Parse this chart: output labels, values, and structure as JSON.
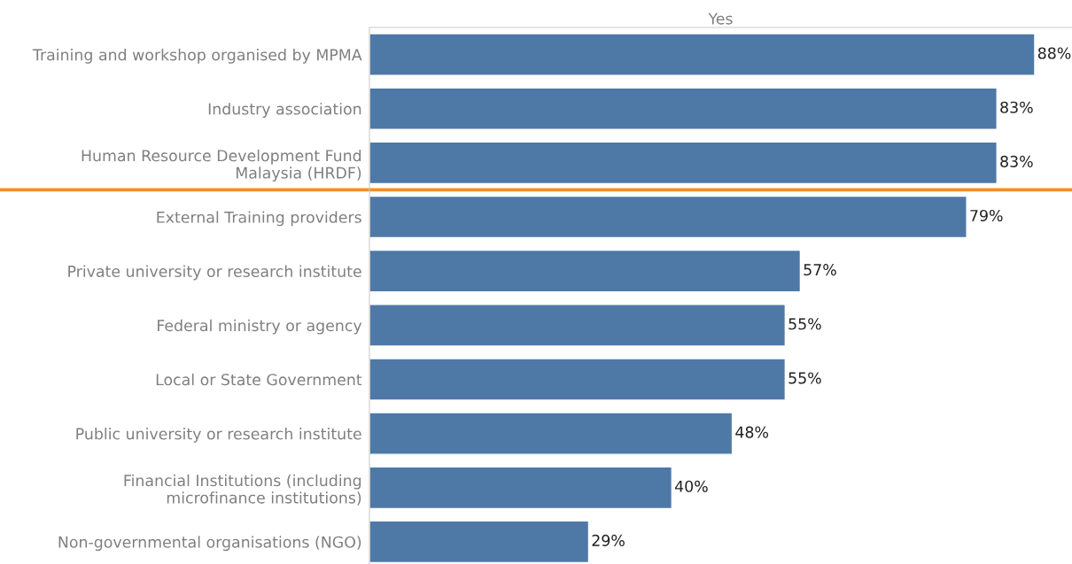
{
  "chart_data": {
    "type": "bar",
    "orientation": "horizontal",
    "title": "Yes",
    "categories": [
      "Training and workshop organised by MPMA",
      "Industry association",
      "Human Resource Development Fund\nMalaysia (HRDF)",
      "External Training providers",
      "Private university or research institute",
      "Federal ministry or agency",
      "Local or State Government",
      "Public university or research institute",
      "Financial Institutions (including\nmicrofinance institutions)",
      "Non-governmental organisations (NGO)"
    ],
    "values": [
      88,
      83,
      83,
      79,
      57,
      55,
      55,
      48,
      40,
      29
    ],
    "value_labels": [
      "88%",
      "83%",
      "83%",
      "79%",
      "57%",
      "55%",
      "55%",
      "48%",
      "40%",
      "29%"
    ],
    "color": "#4e79a7",
    "legend": false
  }
}
